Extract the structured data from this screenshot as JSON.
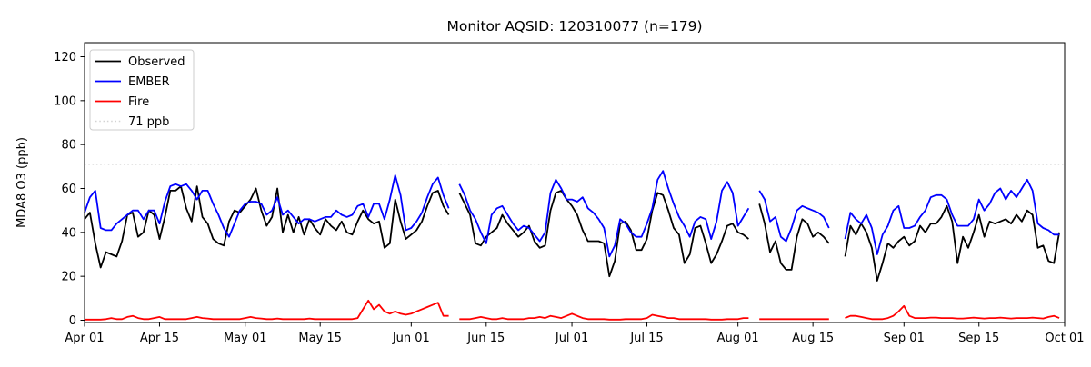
{
  "chart_data": {
    "type": "line",
    "title": "Monitor AQSID: 120310077 (n=179)",
    "ylabel": "MDA8 O3 (ppb)",
    "xlabel": "",
    "ylim": [
      0,
      126
    ],
    "y_ticks": [
      0,
      20,
      40,
      60,
      80,
      100,
      120
    ],
    "grid": false,
    "legend_position": "upper left",
    "days_total": 183,
    "start_label": "Apr 01",
    "end_label": "Oct 01",
    "x_ticks": [
      {
        "day": 0,
        "label": "Apr 01"
      },
      {
        "day": 14,
        "label": "Apr 15"
      },
      {
        "day": 30,
        "label": "May 01"
      },
      {
        "day": 44,
        "label": "May 15"
      },
      {
        "day": 61,
        "label": "Jun 01"
      },
      {
        "day": 75,
        "label": "Jun 15"
      },
      {
        "day": 91,
        "label": "Jul 01"
      },
      {
        "day": 105,
        "label": "Jul 15"
      },
      {
        "day": 122,
        "label": "Aug 01"
      },
      {
        "day": 136,
        "label": "Aug 15"
      },
      {
        "day": 153,
        "label": "Sep 01"
      },
      {
        "day": 167,
        "label": "Sep 15"
      },
      {
        "day": 183,
        "label": "Oct 01"
      }
    ],
    "reference_line": {
      "label": "71 ppb",
      "value": 71,
      "color": "#d3d3d3",
      "style": "dotted"
    },
    "missing_days": [
      "Jun 09",
      "Aug 04",
      "Aug 19",
      "Aug 20"
    ],
    "series": [
      {
        "name": "Observed",
        "color": "#000000",
        "values": [
          46,
          49,
          35,
          24,
          31,
          30,
          29,
          36,
          48,
          49,
          38,
          40,
          50,
          48,
          37,
          47,
          59,
          59,
          61,
          51,
          45,
          61,
          47,
          44,
          37,
          35,
          34,
          45,
          50,
          49,
          52,
          55,
          60,
          50,
          43,
          47,
          60,
          40,
          48,
          40,
          47,
          39,
          46,
          42,
          39,
          46,
          43,
          41,
          45,
          40,
          39,
          45,
          50,
          46,
          44,
          45,
          33,
          35,
          55,
          45,
          37,
          39,
          41,
          45,
          52,
          58,
          59,
          52,
          48,
          null,
          58,
          53,
          48,
          35,
          34,
          38,
          40,
          42,
          48,
          44,
          41,
          38,
          40,
          43,
          36,
          33,
          34,
          50,
          58,
          59,
          55,
          52,
          48,
          41,
          36,
          36,
          36,
          35,
          20,
          27,
          44,
          45,
          41,
          32,
          32,
          37,
          50,
          58,
          57,
          50,
          42,
          39,
          26,
          30,
          42,
          43,
          35,
          26,
          30,
          36,
          43,
          44,
          40,
          39,
          37,
          null,
          53,
          44,
          31,
          36,
          26,
          23,
          23,
          38,
          46,
          44,
          38,
          40,
          38,
          35,
          null,
          null,
          29,
          43,
          39,
          44,
          40,
          33,
          18,
          26,
          35,
          33,
          36,
          38,
          34,
          36,
          43,
          40,
          44,
          44,
          47,
          52,
          45,
          26,
          38,
          33,
          40,
          48,
          38,
          45,
          44,
          45,
          46,
          44,
          48,
          45,
          50,
          48,
          33,
          34,
          27,
          26,
          40
        ]
      },
      {
        "name": "EMBER",
        "color": "#0000ff",
        "values": [
          49,
          56,
          59,
          42,
          41,
          41,
          44,
          46,
          48,
          50,
          50,
          46,
          50,
          50,
          44,
          54,
          61,
          62,
          61,
          62,
          59,
          55,
          59,
          59,
          53,
          48,
          42,
          38,
          44,
          50,
          53,
          54,
          54,
          53,
          48,
          50,
          56,
          48,
          50,
          47,
          44,
          46,
          46,
          45,
          46,
          47,
          47,
          50,
          48,
          47,
          48,
          52,
          53,
          47,
          53,
          53,
          46,
          55,
          66,
          57,
          41,
          42,
          45,
          49,
          56,
          62,
          65,
          57,
          51,
          null,
          62,
          57,
          50,
          46,
          40,
          35,
          48,
          51,
          52,
          48,
          44,
          41,
          43,
          42,
          39,
          36,
          40,
          58,
          64,
          60,
          55,
          55,
          54,
          56,
          51,
          49,
          46,
          42,
          29,
          34,
          46,
          44,
          40,
          38,
          38,
          44,
          51,
          64,
          68,
          60,
          53,
          47,
          43,
          38,
          45,
          47,
          46,
          37,
          45,
          59,
          63,
          58,
          43,
          47,
          51,
          null,
          59,
          55,
          45,
          47,
          38,
          36,
          42,
          50,
          52,
          51,
          50,
          49,
          47,
          42,
          null,
          null,
          37,
          49,
          46,
          44,
          48,
          42,
          30,
          39,
          43,
          50,
          52,
          42,
          42,
          43,
          47,
          50,
          56,
          57,
          57,
          55,
          48,
          43,
          43,
          43,
          46,
          55,
          50,
          53,
          58,
          60,
          55,
          59,
          56,
          60,
          64,
          59,
          44,
          42,
          41,
          39,
          39
        ]
      },
      {
        "name": "Fire",
        "color": "#ff0000",
        "values": [
          0.3,
          0.3,
          0.3,
          0.3,
          0.5,
          1,
          0.5,
          0.5,
          1.5,
          2,
          1,
          0.5,
          0.5,
          1,
          1.5,
          0.5,
          0.5,
          0.5,
          0.5,
          0.5,
          1,
          1.5,
          1,
          0.8,
          0.5,
          0.5,
          0.5,
          0.5,
          0.5,
          0.5,
          1,
          1.5,
          1,
          0.8,
          0.5,
          0.5,
          0.8,
          0.5,
          0.5,
          0.5,
          0.5,
          0.5,
          0.8,
          0.5,
          0.5,
          0.5,
          0.5,
          0.5,
          0.5,
          0.5,
          0.5,
          1,
          5,
          9,
          5,
          7,
          4,
          3,
          4,
          3,
          2.5,
          3,
          4,
          5,
          6,
          7,
          8,
          2,
          2,
          null,
          0.5,
          0.5,
          0.5,
          1,
          1.5,
          1,
          0.5,
          0.5,
          1,
          0.5,
          0.5,
          0.5,
          0.5,
          1,
          1,
          1.5,
          1,
          2,
          1.5,
          1,
          2,
          3,
          2,
          1,
          0.5,
          0.5,
          0.5,
          0.5,
          0.3,
          0.3,
          0.3,
          0.5,
          0.5,
          0.5,
          0.5,
          1,
          2.5,
          2,
          1.5,
          1,
          1,
          0.5,
          0.5,
          0.5,
          0.5,
          0.5,
          0.5,
          0.3,
          0.3,
          0.3,
          0.5,
          0.5,
          0.5,
          1,
          1,
          null,
          0.5,
          0.5,
          0.5,
          0.5,
          0.5,
          0.5,
          0.5,
          0.5,
          0.5,
          0.5,
          0.5,
          0.5,
          0.5,
          0.5,
          null,
          null,
          1,
          2,
          2,
          1.5,
          1,
          0.5,
          0.5,
          0.5,
          1,
          2,
          4,
          6.5,
          2,
          1,
          1,
          1,
          1.2,
          1.2,
          1,
          1,
          1,
          0.8,
          0.8,
          1,
          1.2,
          1,
          0.8,
          1,
          1,
          1.2,
          1,
          0.8,
          1,
          1,
          1,
          1.2,
          1,
          0.8,
          1.5,
          2,
          1
        ]
      }
    ]
  }
}
